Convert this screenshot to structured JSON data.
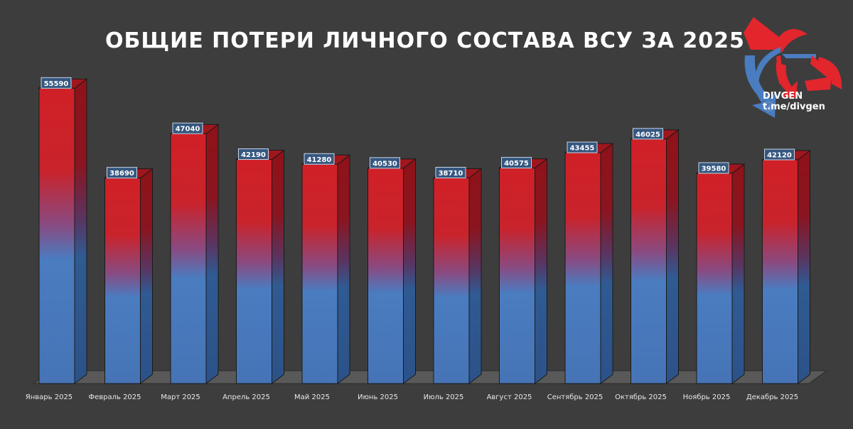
{
  "chart_data": {
    "type": "bar",
    "title": "ОБЩИЕ ПОТЕРИ ЛИЧНОГО СОСТАВА ВСУ ЗА 2025 Г.",
    "categories": [
      "Январь 2025",
      "Февраль 2025",
      "Март 2025",
      "Апрель 2025",
      "Май 2025",
      "Июнь 2025",
      "Июль 2025",
      "Август 2025",
      "Сентябрь 2025",
      "Октябрь 2025",
      "Ноябрь 2025",
      "Декабрь 2025"
    ],
    "values": [
      55590,
      38690,
      47040,
      42190,
      41280,
      40530,
      38710,
      40575,
      43455,
      46025,
      39580,
      42120
    ],
    "data_labels": [
      "55590",
      "38690",
      "47040",
      "42190",
      "41280",
      "40530",
      "38710",
      "40575",
      "43455",
      "46025",
      "39580",
      "42120"
    ],
    "ylim": [
      0,
      57500
    ],
    "grid": false,
    "colors": {
      "top": "#d02027",
      "bottom": "#4a7cc0",
      "background": "#3d3d3d"
    }
  },
  "logo": {
    "brand": "DIVGEN",
    "handle": "t.me/divgen",
    "icon": "divgen-arrows-logo"
  }
}
